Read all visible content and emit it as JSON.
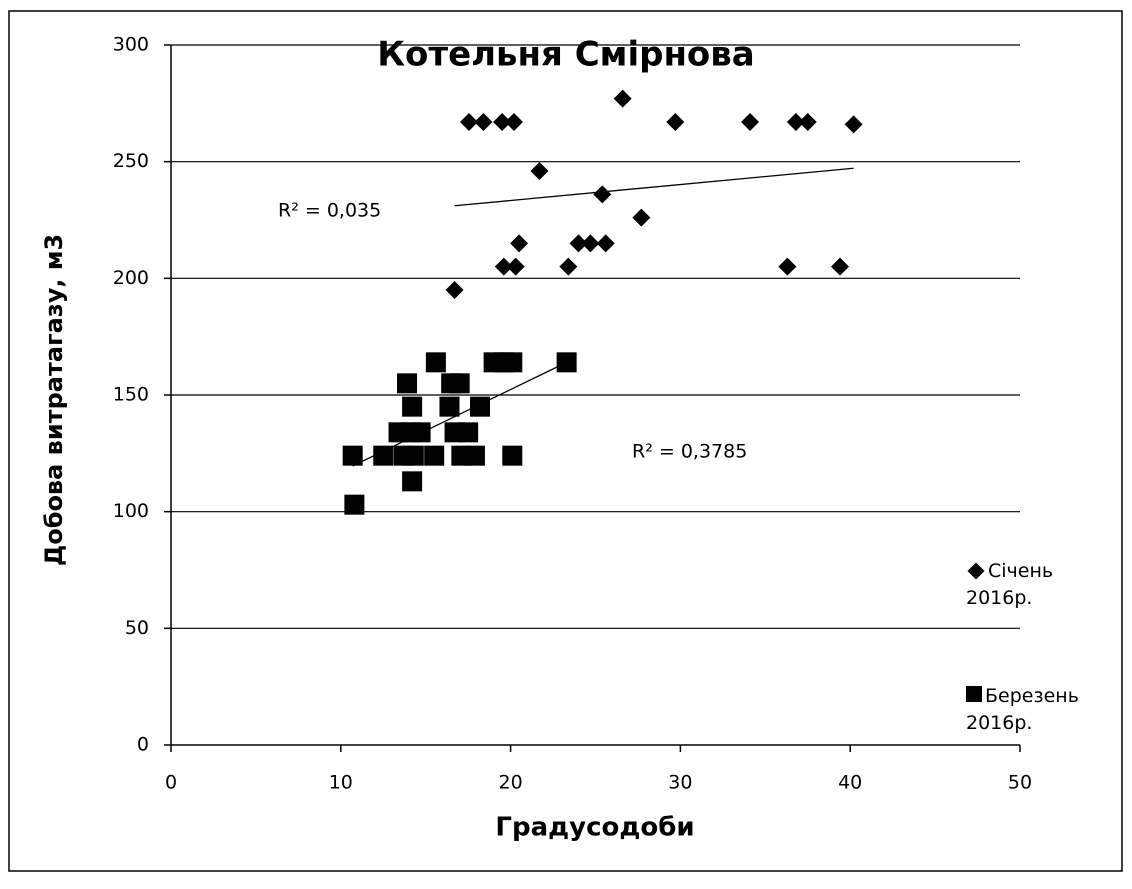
{
  "chart_data": {
    "type": "scatter",
    "title": "Котельня Смірнова",
    "x_label": "Градусодоби",
    "y_label": "Добова витратагазу, м3",
    "annotations": [
      "R² = 0,035",
      "R² = 0,3785"
    ],
    "xlim": [
      0,
      50
    ],
    "xticks": [
      0,
      10,
      20,
      30,
      40,
      50
    ],
    "ylim": [
      0,
      300
    ],
    "yticks": [
      0,
      50,
      100,
      150,
      200,
      250,
      300
    ],
    "grid": true,
    "trendline": true,
    "legend": "right",
    "series": [
      {
        "name": "Січень 2016р.",
        "color": "#000000",
        "marker": "diamond",
        "x": [
          17.55,
          18.4,
          19.5,
          20.2,
          21.7,
          26.6,
          29.7,
          34.1,
          36.8,
          37.5,
          40.2,
          25.4,
          27.7,
          20.5,
          24.0,
          24.7,
          25.6,
          19.6,
          20.3,
          23.4,
          36.3,
          39.4,
          16.7
        ],
        "values": [
          267,
          267,
          267,
          267,
          246,
          277,
          267,
          267,
          267,
          267,
          266,
          236,
          226,
          215,
          215,
          215,
          215,
          205,
          205,
          205,
          205,
          205,
          195
        ]
      },
      {
        "name": "Березень 2016р.",
        "color": "#000000",
        "marker": "square",
        "x": [
          10.7,
          10.8,
          12.5,
          13.4,
          13.7,
          13.9,
          14.1,
          14.2,
          14.2,
          14.3,
          14.7,
          15.5,
          15.6,
          16.4,
          16.5,
          16.7,
          17.0,
          17.1,
          17.5,
          17.9,
          18.2,
          19.0,
          19.6,
          20.1,
          20.1,
          23.3
        ],
        "values": [
          124,
          103,
          124,
          134,
          124,
          155,
          134,
          113,
          145,
          124,
          134,
          124,
          164,
          145,
          155,
          134,
          155,
          124,
          134,
          124,
          145,
          164,
          164,
          164,
          124,
          164
        ]
      }
    ]
  }
}
